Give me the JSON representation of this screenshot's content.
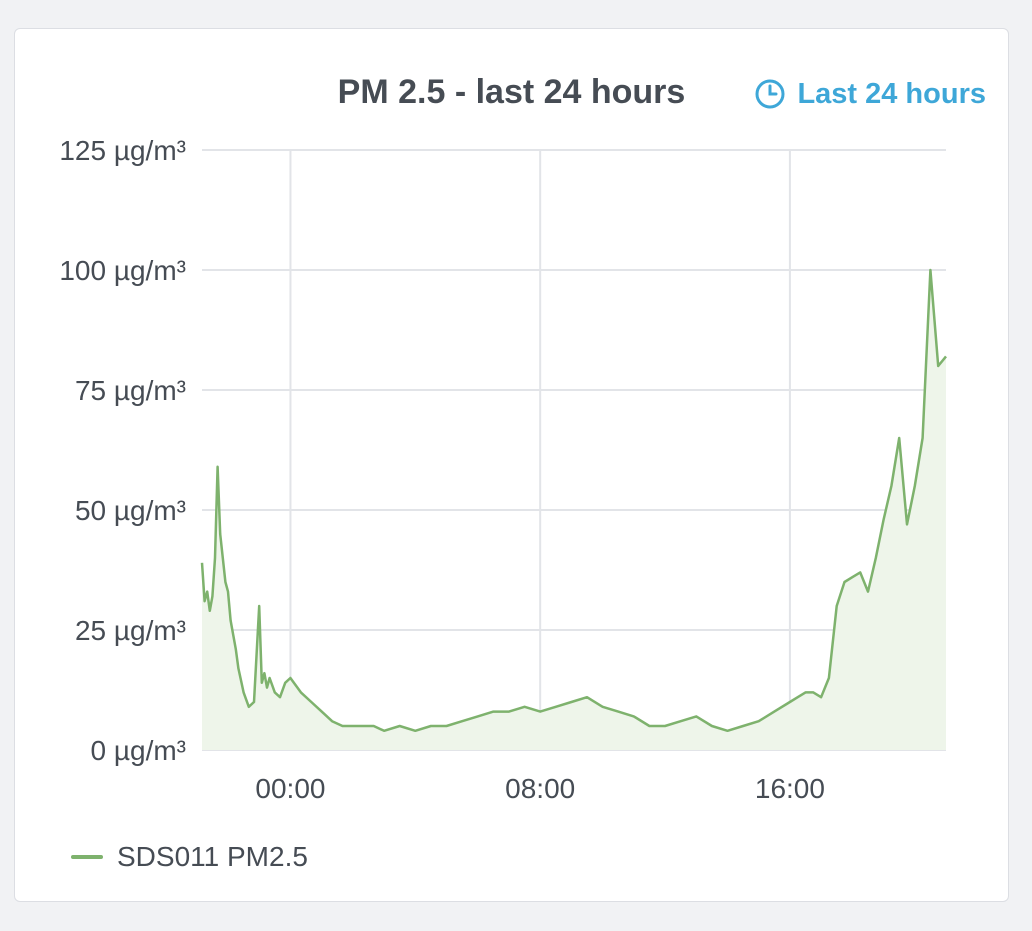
{
  "panel": {
    "title": "PM 2.5 - last 24 hours",
    "time_range_label": "Last 24 hours",
    "time_range_icon": "clock-icon"
  },
  "colors": {
    "series": "#7eb26d",
    "fill": "#eef5ea",
    "grid": "#e2e4e8",
    "text": "#464c54",
    "link": "#3ea7d8"
  },
  "legend": [
    {
      "label": "SDS011 PM2.5",
      "color": "#7eb26d"
    }
  ],
  "chart_data": {
    "type": "area",
    "title": "PM 2.5 - last 24 hours",
    "xlabel": "",
    "ylabel": "",
    "unit": "µg/m³",
    "ylim": [
      0,
      125
    ],
    "yticks": [
      "0 µg/m³",
      "25 µg/m³",
      "50 µg/m³",
      "75 µg/m³",
      "100 µg/m³",
      "125 µg/m³"
    ],
    "ytick_values": [
      0,
      25,
      50,
      75,
      100,
      125
    ],
    "xticks": [
      "00:00",
      "08:00",
      "16:00"
    ],
    "xtick_values": [
      "00:00",
      "08:00",
      "16:00"
    ],
    "x_start": "21:10",
    "x_end": "21:00",
    "grid": true,
    "legend_position": "bottom-left",
    "series": [
      {
        "name": "SDS011 PM2.5",
        "x": [
          "21:10",
          "21:15",
          "21:20",
          "21:25",
          "21:30",
          "21:35",
          "21:40",
          "21:45",
          "21:50",
          "21:55",
          "22:00",
          "22:05",
          "22:10",
          "22:15",
          "22:20",
          "22:30",
          "22:40",
          "22:50",
          "23:00",
          "23:05",
          "23:10",
          "23:15",
          "23:20",
          "23:30",
          "23:40",
          "23:50",
          "00:00",
          "00:20",
          "00:40",
          "01:00",
          "01:20",
          "01:40",
          "02:00",
          "02:20",
          "02:40",
          "03:00",
          "03:30",
          "04:00",
          "04:30",
          "05:00",
          "05:30",
          "06:00",
          "06:30",
          "07:00",
          "07:30",
          "08:00",
          "08:30",
          "09:00",
          "09:30",
          "10:00",
          "10:30",
          "11:00",
          "11:30",
          "12:00",
          "12:30",
          "13:00",
          "13:30",
          "14:00",
          "14:30",
          "15:00",
          "15:30",
          "16:00",
          "16:15",
          "16:30",
          "16:45",
          "17:00",
          "17:15",
          "17:30",
          "17:45",
          "18:00",
          "18:15",
          "18:30",
          "18:45",
          "19:00",
          "19:15",
          "19:30",
          "19:45",
          "20:00",
          "20:15",
          "20:30",
          "20:45",
          "21:00"
        ],
        "values": [
          39,
          31,
          33,
          29,
          32,
          40,
          59,
          45,
          40,
          35,
          33,
          27,
          24,
          21,
          17,
          12,
          9,
          10,
          30,
          14,
          16,
          13,
          15,
          12,
          11,
          14,
          15,
          12,
          10,
          8,
          6,
          5,
          5,
          5,
          5,
          4,
          5,
          4,
          5,
          5,
          6,
          7,
          8,
          8,
          9,
          8,
          9,
          10,
          11,
          9,
          8,
          7,
          5,
          5,
          6,
          7,
          5,
          4,
          5,
          6,
          8,
          10,
          11,
          12,
          12,
          11,
          15,
          30,
          35,
          36,
          37,
          33,
          40,
          48,
          55,
          65,
          47,
          55,
          65,
          100,
          80,
          82
        ]
      }
    ]
  }
}
